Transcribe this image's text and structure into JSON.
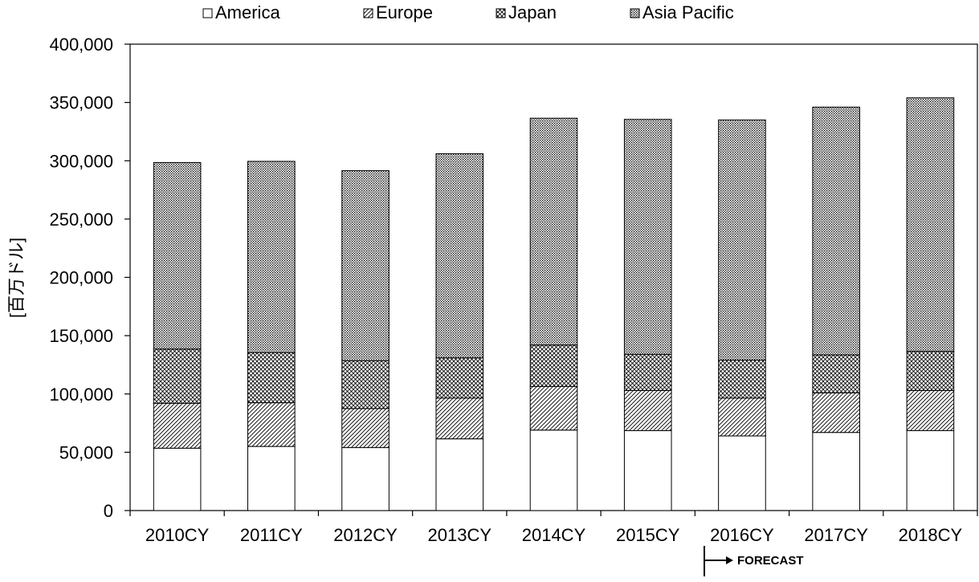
{
  "chart_data": {
    "type": "bar",
    "stacked": true,
    "title": "",
    "xlabel": "",
    "ylabel": "[百万ドル]",
    "ylim": [
      0,
      400000
    ],
    "yticks": [
      0,
      50000,
      100000,
      150000,
      200000,
      250000,
      300000,
      350000,
      400000
    ],
    "ytick_labels": [
      "0",
      "50,000",
      "100,000",
      "150,000",
      "200,000",
      "250,000",
      "300,000",
      "350,000",
      "400,000"
    ],
    "categories": [
      "2010CY",
      "2011CY",
      "2012CY",
      "2013CY",
      "2014CY",
      "2015CY",
      "2016CY",
      "2017CY",
      "2018CY"
    ],
    "legend_position": "top",
    "grid": false,
    "series": [
      {
        "name": "America",
        "pattern": "blank",
        "values": [
          53500,
          55000,
          54000,
          61500,
          69000,
          68500,
          64000,
          67000,
          68500
        ]
      },
      {
        "name": "Europe",
        "pattern": "diagonal-hatch",
        "values": [
          38500,
          37500,
          33500,
          35000,
          37500,
          34500,
          32500,
          34000,
          34500
        ]
      },
      {
        "name": "Japan",
        "pattern": "cross-hatch",
        "values": [
          46500,
          43000,
          41000,
          34500,
          35500,
          31000,
          32500,
          32500,
          33500
        ]
      },
      {
        "name": "Asia Pacific",
        "pattern": "dots",
        "values": [
          160000,
          164000,
          163000,
          175000,
          194500,
          201500,
          206000,
          212500,
          217500
        ]
      }
    ],
    "annotation": {
      "text": "FORECAST",
      "from_category": "2016CY"
    }
  }
}
